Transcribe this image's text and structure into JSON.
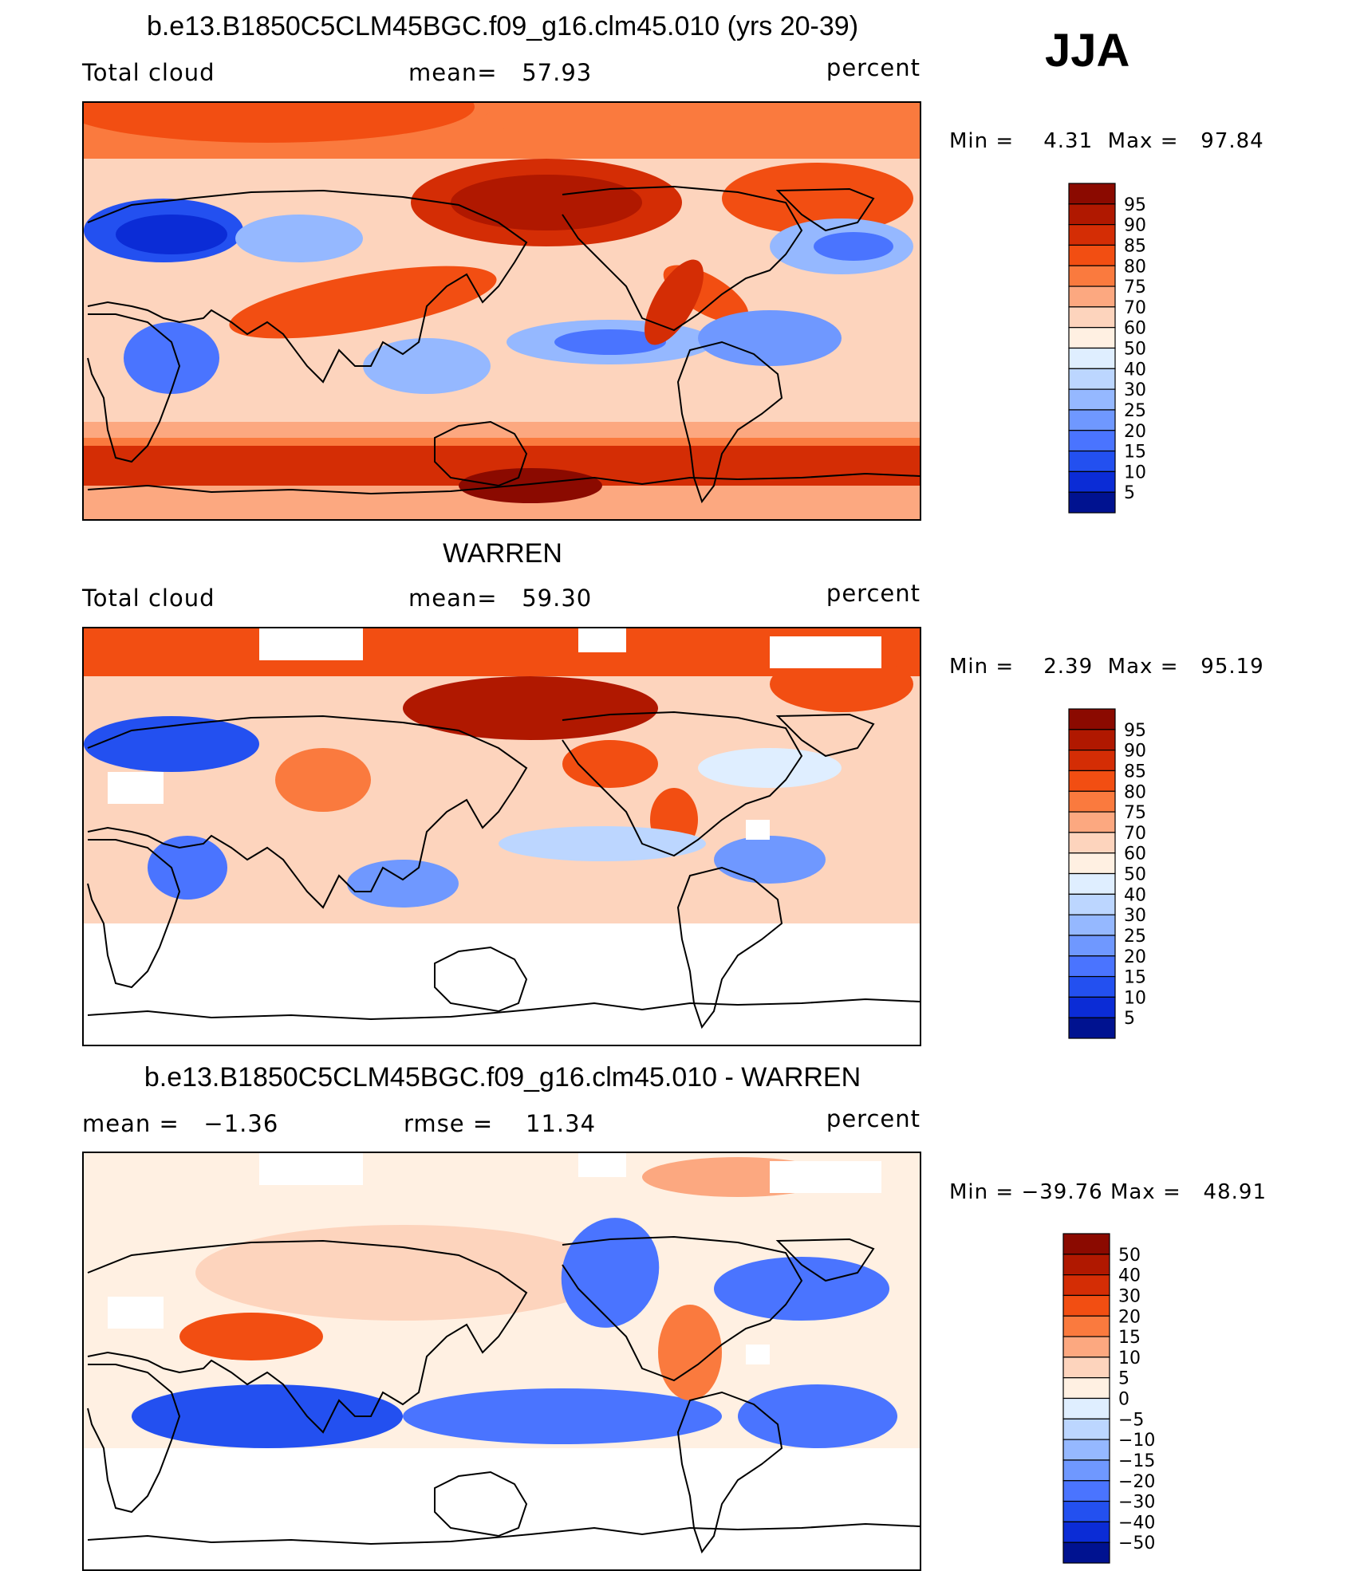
{
  "season": "JJA",
  "panels": [
    {
      "title": "b.e13.B1850C5CLM45BGC.f09_g16.clm45.010 (yrs 20-39)",
      "left_label": "Total cloud",
      "mid_label": "mean=",
      "mid_value": "57.93",
      "right_label": "percent",
      "min_label": "Min =",
      "min_value": "4.31",
      "max_label": "Max =",
      "max_value": "97.84"
    },
    {
      "title": "WARREN",
      "left_label": "Total cloud",
      "mid_label": "mean=",
      "mid_value": "59.30",
      "right_label": "percent",
      "min_label": "Min =",
      "min_value": "2.39",
      "max_label": "Max =",
      "max_value": "95.19"
    },
    {
      "title": "b.e13.B1850C5CLM45BGC.f09_g16.clm45.010 - WARREN",
      "left_label": "mean =",
      "left_value": "−1.36",
      "mid_label": "rmse =",
      "mid_value": "11.34",
      "right_label": "percent",
      "min_label": "Min =",
      "min_value": "−39.76",
      "max_label": "Max =",
      "max_value": "48.91"
    }
  ],
  "chart_data": [
    {
      "type": "heatmap",
      "title": "b.e13.B1850C5CLM45BGC.f09_g16.clm45.010 (yrs 20-39)",
      "variable": "Total cloud",
      "units": "percent",
      "mean": 57.93,
      "min": 4.31,
      "max": 97.84,
      "colorbar_labels": [
        "95",
        "90",
        "85",
        "80",
        "75",
        "70",
        "60",
        "50",
        "40",
        "30",
        "25",
        "20",
        "15",
        "10",
        "5"
      ],
      "colors": [
        "#8b0a00",
        "#b01800",
        "#d42d05",
        "#f24e12",
        "#fa7a3e",
        "#fca880",
        "#fdd4bd",
        "#fff0e2",
        "#dfeeff",
        "#bcd6ff",
        "#95b8ff",
        "#6f98ff",
        "#4a74ff",
        "#2350f0",
        "#0b2cd6",
        "#001290"
      ]
    },
    {
      "type": "heatmap",
      "title": "WARREN",
      "variable": "Total cloud",
      "units": "percent",
      "mean": 59.3,
      "min": 2.39,
      "max": 95.19,
      "colorbar_labels": [
        "95",
        "90",
        "85",
        "80",
        "75",
        "70",
        "60",
        "50",
        "40",
        "30",
        "25",
        "20",
        "15",
        "10",
        "5"
      ],
      "colors": [
        "#8b0a00",
        "#b01800",
        "#d42d05",
        "#f24e12",
        "#fa7a3e",
        "#fca880",
        "#fdd4bd",
        "#fff0e2",
        "#dfeeff",
        "#bcd6ff",
        "#95b8ff",
        "#6f98ff",
        "#4a74ff",
        "#2350f0",
        "#0b2cd6",
        "#001290"
      ]
    },
    {
      "type": "heatmap",
      "title": "b.e13.B1850C5CLM45BGC.f09_g16.clm45.010 - WARREN",
      "units": "percent",
      "mean": -1.36,
      "rmse": 11.34,
      "min": -39.76,
      "max": 48.91,
      "colorbar_labels": [
        "50",
        "40",
        "30",
        "20",
        "15",
        "10",
        "5",
        "0",
        "−5",
        "−10",
        "−15",
        "−20",
        "−30",
        "−40",
        "−50"
      ],
      "colors": [
        "#8b0a00",
        "#b01800",
        "#d42d05",
        "#f24e12",
        "#fa7a3e",
        "#fca880",
        "#fdd4bd",
        "#fff0e2",
        "#dfeeff",
        "#bcd6ff",
        "#95b8ff",
        "#6f98ff",
        "#4a74ff",
        "#2350f0",
        "#0b2cd6",
        "#001290"
      ]
    }
  ]
}
